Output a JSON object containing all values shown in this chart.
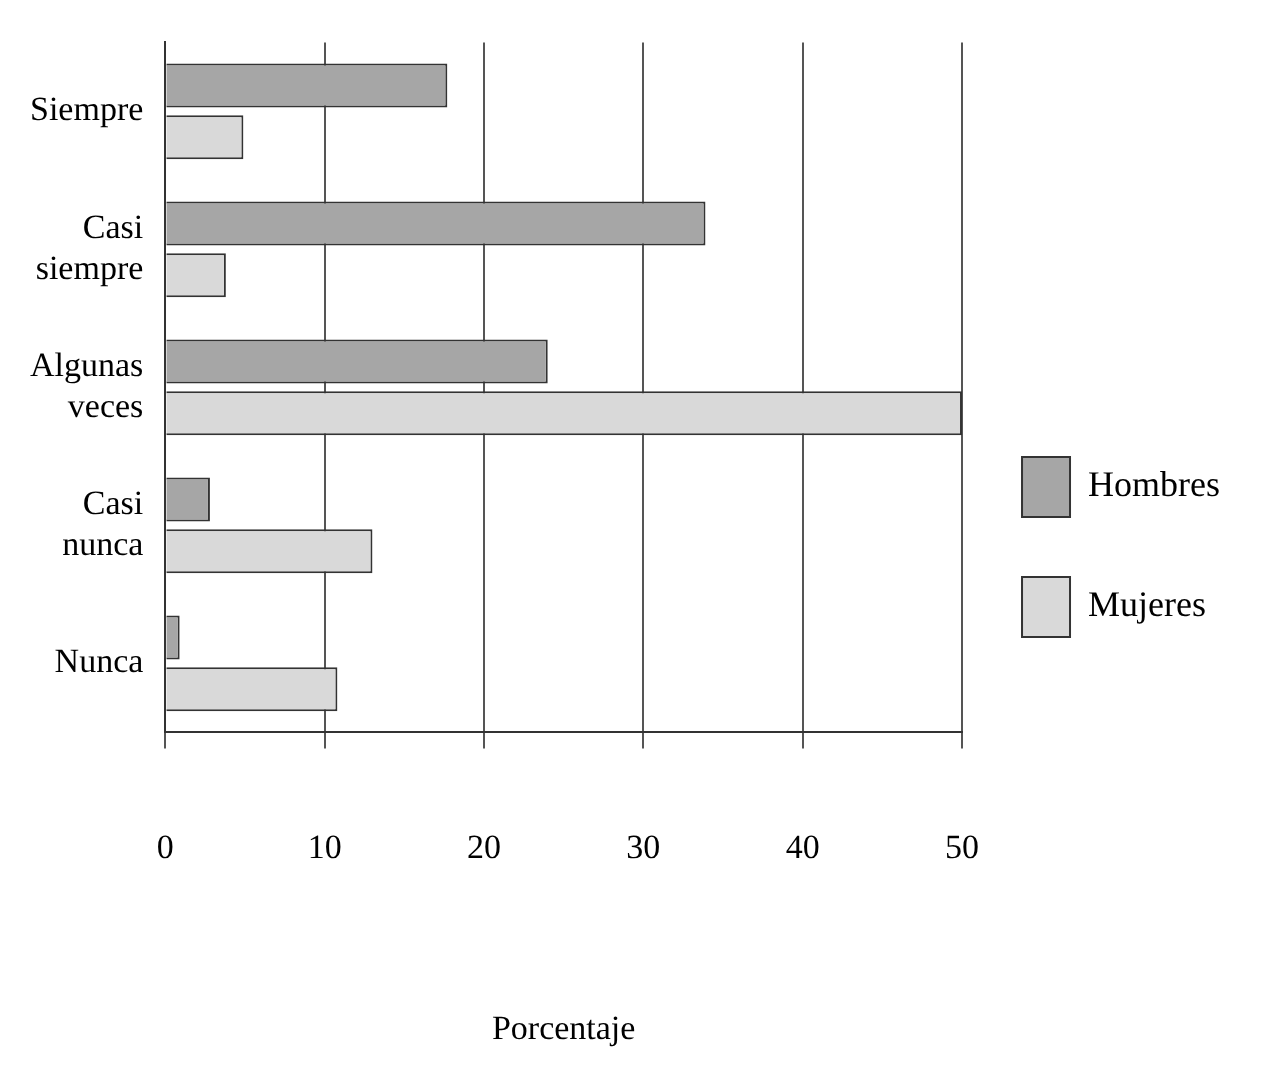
{
  "chart_data": {
    "type": "bar",
    "orientation": "horizontal",
    "xlabel": "Porcentaje",
    "categories": [
      "Siempre",
      "Casi siempre",
      "Algunas veces",
      "Casi nunca",
      "Nunca"
    ],
    "series": [
      {
        "name": "Hombres",
        "color": "#a6a6a6",
        "values": [
          17.7,
          33.9,
          24,
          2.8,
          0.9
        ]
      },
      {
        "name": "Mujeres",
        "color": "#d9d9d9",
        "values": [
          4.9,
          3.8,
          50,
          13,
          10.8
        ]
      }
    ],
    "xlim": [
      0,
      50
    ],
    "xticks": [
      0,
      10,
      20,
      30,
      40,
      50
    ],
    "grid": "x",
    "legend": "right"
  }
}
